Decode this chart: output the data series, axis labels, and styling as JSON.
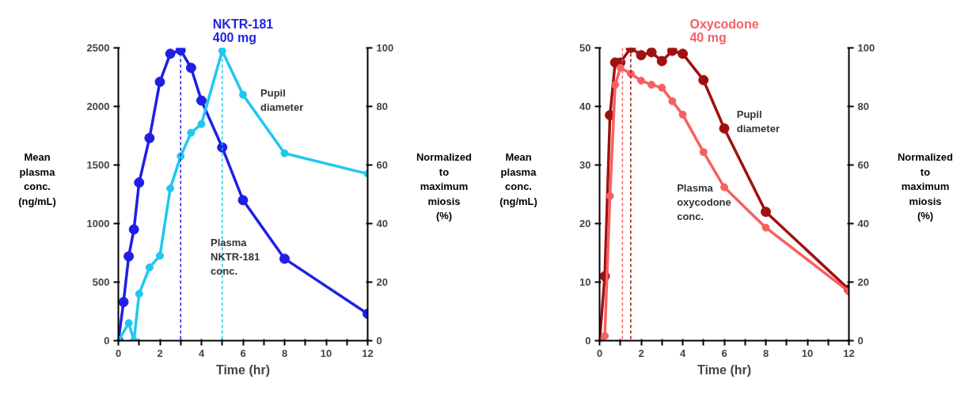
{
  "chart_data": [
    {
      "type": "line",
      "title": "NKTR-181\n400 mg",
      "xlabel": "Time (hr)",
      "ylabel": "Mean\nplasma\nconc.\n(ng/mL)",
      "y2label": "Normalized\nto\nmaximum\nmiosis\n(%)",
      "xlim": [
        0,
        12
      ],
      "xticks": [
        0,
        {
          "value": 1,
          "label": null
        },
        2,
        {
          "value": 3,
          "label": null
        },
        4,
        {
          "value": 5,
          "label": null
        },
        6,
        {
          "value": 7,
          "label": null
        },
        8,
        {
          "value": 9,
          "label": null
        },
        10,
        {
          "value": 11,
          "label": null
        },
        12
      ],
      "ylim": [
        0,
        2500
      ],
      "yticks": [
        0,
        500,
        1000,
        1500,
        2000,
        2500
      ],
      "y2lim": [
        0,
        100
      ],
      "y2ticks": [
        0,
        20,
        40,
        60,
        80,
        100
      ],
      "grid": false,
      "marker": "circle",
      "line_style": "solid",
      "series": [
        {
          "color": "#1f1fe6",
          "x": [
            0,
            0.25,
            0.5,
            0.75,
            1,
            1.5,
            2,
            2.5,
            3,
            3.5,
            4,
            5,
            6,
            8,
            12
          ],
          "values": [
            0,
            330,
            720,
            950,
            1350,
            1730,
            2210,
            2450,
            2480,
            2330,
            2050,
            1650,
            1200,
            700,
            230
          ]
        },
        {
          "color": "#1ec8f0",
          "axis": "y2",
          "x": [
            0,
            0.5,
            0.75,
            1,
            1.5,
            2,
            2.5,
            3,
            3.5,
            4,
            5,
            6,
            8,
            12
          ],
          "values": [
            0,
            6,
            0,
            16,
            25,
            29,
            52,
            63,
            71,
            74,
            99,
            84,
            64,
            57
          ]
        }
      ],
      "ref_lines": [
        {
          "axis": "x",
          "value": 3,
          "color": "#1f1fe6",
          "line_style": "dashed"
        },
        {
          "axis": "x",
          "value": 5,
          "color": "#1ec8f0",
          "line_style": "dashed"
        }
      ],
      "annotations": [
        "Pupil\n diameter",
        "Plasma\nNKTR-181\n conc."
      ]
    },
    {
      "type": "line",
      "title": "Oxycodone\n40 mg",
      "xlabel": "Time (hr)",
      "ylabel": "Mean\nplasma\nconc.\n(ng/mL)",
      "y2label": "Normalized\nto\nmaximum\nmiosis\n(%)",
      "xlim": [
        0,
        12
      ],
      "xticks": [
        0,
        {
          "value": 1,
          "label": null
        },
        2,
        {
          "value": 3,
          "label": null
        },
        4,
        {
          "value": 5,
          "label": null
        },
        6,
        {
          "value": 7,
          "label": null
        },
        8,
        {
          "value": 9,
          "label": null
        },
        10,
        {
          "value": 11,
          "label": null
        },
        12
      ],
      "ylim": [
        0,
        50
      ],
      "yticks": [
        0,
        10,
        20,
        30,
        40,
        50
      ],
      "y2lim": [
        0,
        100
      ],
      "y2ticks": [
        0,
        20,
        40,
        60,
        80,
        100
      ],
      "grid": false,
      "marker": "circle",
      "line_style": "solid",
      "series": [
        {
          "color": "#a01010",
          "axis": "y2",
          "x": [
            0,
            0.25,
            0.5,
            0.75,
            1,
            1.5,
            2,
            2.5,
            3,
            3.5,
            4,
            5,
            6,
            8,
            12
          ],
          "values": [
            0,
            22,
            77,
            95,
            95,
            100,
            97.5,
            98.5,
            95.5,
            99,
            98,
            89,
            72.5,
            44,
            17.5
          ]
        },
        {
          "color": "#f86060",
          "x": [
            0,
            0.25,
            0.5,
            0.75,
            1,
            1.5,
            2,
            2.5,
            3,
            3.5,
            4,
            5,
            6,
            8,
            12
          ],
          "values": [
            0,
            0.8,
            24.7,
            43.7,
            46.6,
            45.6,
            44.4,
            43.7,
            43.2,
            40.9,
            38.6,
            32.2,
            26.2,
            19.3,
            8.4
          ]
        }
      ],
      "ref_lines": [
        {
          "axis": "x",
          "value": 1.1,
          "color": "#f86060",
          "line_style": "dashed"
        },
        {
          "axis": "x",
          "value": 1.5,
          "color": "#a01010",
          "line_style": "dashed"
        }
      ],
      "annotations": [
        "Pupil\n diameter",
        "Plasma\noxycodone\nconc."
      ]
    }
  ]
}
